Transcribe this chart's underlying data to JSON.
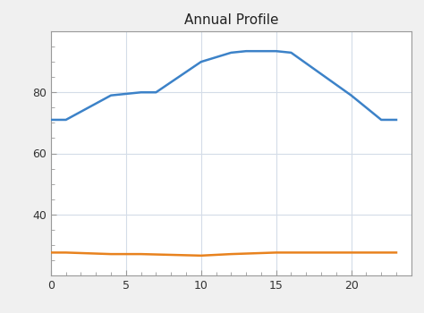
{
  "title": "Annual Profile",
  "blue_x": [
    0,
    1,
    4,
    6,
    7,
    10,
    12,
    13,
    15,
    16,
    20,
    22,
    23
  ],
  "blue_y": [
    71,
    71,
    79,
    80,
    80,
    90,
    93,
    93.5,
    93.5,
    93,
    79,
    71,
    71
  ],
  "orange_x": [
    0,
    1,
    4,
    6,
    10,
    12,
    15,
    17,
    20,
    22,
    23
  ],
  "orange_y": [
    27.5,
    27.5,
    27,
    27,
    26.5,
    27,
    27.5,
    27.5,
    27.5,
    27.5,
    27.5
  ],
  "blue_color": "#3c82c8",
  "orange_color": "#e8821e",
  "xlim": [
    0,
    24
  ],
  "ylim": [
    20,
    100
  ],
  "yticks": [
    40,
    60,
    80
  ],
  "xticks": [
    0,
    5,
    10,
    15,
    20
  ],
  "grid_color": "#d4dce8",
  "spine_color": "#999999",
  "bg_color": "#ffffff",
  "outer_bg": "#f0f0f0",
  "title_fontsize": 11,
  "line_width": 1.8,
  "tick_label_size": 9
}
